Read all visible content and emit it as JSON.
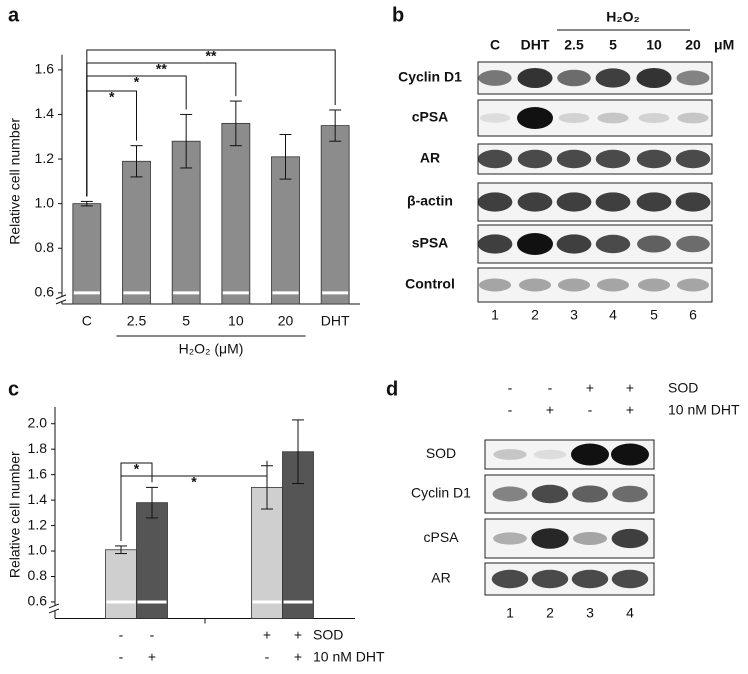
{
  "chart_data": [
    {
      "type": "bar",
      "panel": "a",
      "y_label": "Relative cell number",
      "categories": [
        "C",
        "2.5",
        "5",
        "10",
        "20",
        "DHT"
      ],
      "values": [
        1.0,
        1.19,
        1.28,
        1.36,
        1.21,
        1.35
      ],
      "errors": [
        0.01,
        0.07,
        0.12,
        0.1,
        0.1,
        0.07
      ],
      "color": "#8c8c8c",
      "ylim": [
        0.55,
        1.65
      ],
      "yticks": [
        0.6,
        0.8,
        {
          "value": 1,
          "label": "1.0"
        },
        1.2,
        1.4,
        1.6
      ],
      "group_label": "H₂O₂ (μM)",
      "group_span": [
        "2.5",
        "20"
      ],
      "significance": [
        {
          "label": "**",
          "between": [
            "C",
            "DHT"
          ]
        },
        {
          "label": "**",
          "between": [
            "C",
            "10"
          ]
        },
        {
          "label": "*",
          "between": [
            "C",
            "5"
          ]
        },
        {
          "label": "*",
          "between": [
            "C",
            "2.5"
          ]
        }
      ]
    },
    {
      "type": "bar",
      "panel": "c",
      "y_label": "Relative cell number",
      "values": [
        1.01,
        1.38,
        1.5,
        1.78
      ],
      "errors": [
        0.03,
        0.12,
        0.17,
        0.25
      ],
      "colors": [
        "#cfcfcf",
        "#555555",
        "#cfcfcf",
        "#555555"
      ],
      "ylim": [
        0.47,
        2.1
      ],
      "yticks": [
        0.6,
        0.8,
        {
          "value": 1,
          "label": "1.0"
        },
        1.2,
        1.4,
        1.6,
        1.8,
        {
          "value": 2,
          "label": "2.0"
        }
      ],
      "conditions": [
        {
          "name": "SOD",
          "marks": [
            "-",
            "-",
            "+",
            "+"
          ]
        },
        {
          "name": "10 nM DHT",
          "marks": [
            "-",
            "+",
            "-",
            "+"
          ]
        }
      ],
      "significance": [
        {
          "label": "*",
          "between": [
            0,
            1
          ]
        },
        {
          "label": "*",
          "between": [
            0,
            2
          ]
        }
      ]
    }
  ],
  "blots": [
    {
      "panel": "b",
      "lanes": [
        "C",
        "DHT",
        "2.5",
        "5",
        "10",
        "20"
      ],
      "unit": "μM",
      "group_label": "H₂O₂",
      "rows": [
        "Cyclin D1",
        "cPSA",
        "AR",
        "β-actin",
        "sPSA",
        "Control"
      ],
      "lane_numbers": [
        1,
        2,
        3,
        4,
        5,
        6
      ]
    },
    {
      "panel": "d",
      "conditions": [
        {
          "name": "SOD",
          "marks": [
            "-",
            "-",
            "+",
            "+"
          ]
        },
        {
          "name": "10 nM DHT",
          "marks": [
            "-",
            "+",
            "-",
            "+"
          ]
        }
      ],
      "rows": [
        "SOD",
        "Cyclin D1",
        "cPSA",
        "AR"
      ],
      "lane_numbers": [
        1,
        2,
        3,
        4
      ]
    }
  ]
}
